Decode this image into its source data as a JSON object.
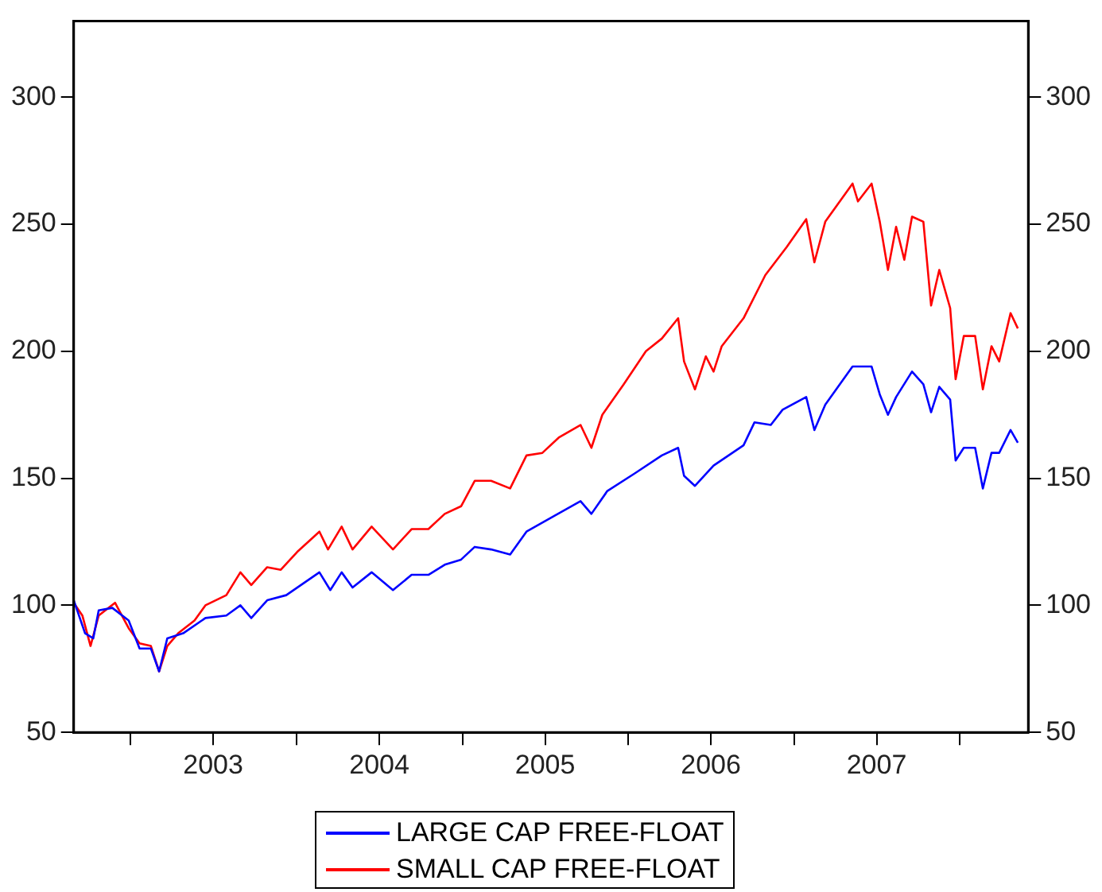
{
  "chart_data": {
    "type": "line",
    "xlim": [
      "2002-08-29",
      "2008-05-31"
    ],
    "xticks": [
      {
        "value": "2003-01-01",
        "label": null
      },
      {
        "value": "2003-07-02",
        "label": "2003"
      },
      {
        "value": "2004-01-01",
        "label": null
      },
      {
        "value": "2004-07-02",
        "label": "2004"
      },
      {
        "value": "2005-01-01",
        "label": null
      },
      {
        "value": "2005-07-02",
        "label": "2005"
      },
      {
        "value": "2006-01-01",
        "label": null
      },
      {
        "value": "2006-07-02",
        "label": "2006"
      },
      {
        "value": "2007-01-01",
        "label": null
      },
      {
        "value": "2007-07-02",
        "label": "2007"
      },
      {
        "value": "2008-01-01",
        "label": null
      }
    ],
    "ylim": [
      50,
      330
    ],
    "yticks": [
      50,
      100,
      150,
      200,
      250,
      300
    ],
    "y2lim": [
      50,
      330
    ],
    "y2ticks": [
      50,
      100,
      150,
      200,
      250,
      300
    ],
    "grid": false,
    "legend": "bottom",
    "marker": "none",
    "line_style": "solid",
    "series": [
      {
        "name": "LARGE CAP FREE-FLOAT",
        "color": "#0000ff",
        "x": [
          "2002-08-29",
          "2002-09-23",
          "2002-10-11",
          "2002-10-23",
          "2002-11-22",
          "2002-12-28",
          "2003-01-21",
          "2003-02-15",
          "2003-03-05",
          "2003-03-23",
          "2003-04-27",
          "2003-06-15",
          "2003-07-31",
          "2003-08-31",
          "2003-09-24",
          "2003-10-29",
          "2003-12-10",
          "2004-02-21",
          "2004-03-16",
          "2004-04-10",
          "2004-05-04",
          "2004-06-15",
          "2004-08-01",
          "2004-09-11",
          "2004-10-18",
          "2004-11-23",
          "2004-12-29",
          "2005-01-28",
          "2005-03-05",
          "2005-04-16",
          "2005-05-22",
          "2005-07-20",
          "2005-09-18",
          "2005-10-12",
          "2005-11-16",
          "2006-01-16",
          "2006-03-16",
          "2006-04-21",
          "2006-05-04",
          "2006-05-28",
          "2006-07-08",
          "2006-09-12",
          "2006-10-06",
          "2006-11-11",
          "2006-12-07",
          "2007-01-28",
          "2007-02-15",
          "2007-03-11",
          "2007-05-10",
          "2007-06-21",
          "2007-07-09",
          "2007-07-27",
          "2007-08-14",
          "2007-09-18",
          "2007-10-13",
          "2007-10-30",
          "2007-11-17",
          "2007-12-11",
          "2007-12-23",
          "2008-01-10",
          "2008-02-04",
          "2008-02-21",
          "2008-03-11",
          "2008-03-28",
          "2008-04-22",
          "2008-05-08"
        ],
        "values": [
          102,
          89,
          87,
          98,
          99,
          94,
          83,
          83,
          74,
          87,
          89,
          95,
          96,
          100,
          95,
          102,
          104,
          113,
          106,
          113,
          107,
          113,
          106,
          112,
          112,
          116,
          118,
          123,
          122,
          120,
          129,
          135,
          141,
          136,
          145,
          152,
          159,
          162,
          151,
          147,
          155,
          163,
          172,
          171,
          177,
          182,
          169,
          179,
          194,
          194,
          183,
          175,
          182,
          192,
          187,
          176,
          186,
          181,
          157,
          162,
          162,
          146,
          160,
          160,
          169,
          164
        ]
      },
      {
        "name": "SMALL CAP FREE-FLOAT",
        "color": "#ff0000",
        "x": [
          "2002-08-29",
          "2002-09-17",
          "2002-10-05",
          "2002-10-23",
          "2002-11-28",
          "2002-12-28",
          "2003-01-21",
          "2003-02-15",
          "2003-03-05",
          "2003-03-23",
          "2003-04-16",
          "2003-05-22",
          "2003-06-15",
          "2003-07-31",
          "2003-08-31",
          "2003-09-24",
          "2003-10-29",
          "2003-11-28",
          "2004-01-03",
          "2004-02-21",
          "2004-03-11",
          "2004-04-10",
          "2004-05-04",
          "2004-06-15",
          "2004-08-01",
          "2004-09-11",
          "2004-10-18",
          "2004-11-23",
          "2004-12-29",
          "2005-01-28",
          "2005-03-05",
          "2005-04-16",
          "2005-05-22",
          "2005-06-26",
          "2005-08-01",
          "2005-09-18",
          "2005-10-12",
          "2005-11-05",
          "2005-12-22",
          "2006-02-09",
          "2006-03-16",
          "2006-04-21",
          "2006-05-04",
          "2006-05-28",
          "2006-06-21",
          "2006-07-08",
          "2006-07-26",
          "2006-09-12",
          "2006-10-30",
          "2006-12-16",
          "2007-01-28",
          "2007-02-15",
          "2007-03-11",
          "2007-05-10",
          "2007-05-22",
          "2007-06-21",
          "2007-07-09",
          "2007-07-27",
          "2007-08-14",
          "2007-09-01",
          "2007-09-18",
          "2007-10-13",
          "2007-10-30",
          "2007-11-17",
          "2007-12-11",
          "2007-12-23",
          "2008-01-10",
          "2008-02-04",
          "2008-02-21",
          "2008-03-11",
          "2008-03-28",
          "2008-04-22",
          "2008-05-08"
        ],
        "values": [
          101,
          96,
          84,
          96,
          101,
          91,
          85,
          84,
          74,
          84,
          89,
          94,
          100,
          104,
          113,
          108,
          115,
          114,
          121,
          129,
          122,
          131,
          122,
          131,
          122,
          130,
          130,
          136,
          139,
          149,
          149,
          146,
          159,
          160,
          166,
          171,
          162,
          175,
          187,
          200,
          205,
          213,
          196,
          185,
          198,
          192,
          202,
          213,
          230,
          241,
          252,
          235,
          251,
          266,
          259,
          266,
          251,
          232,
          249,
          236,
          253,
          251,
          218,
          232,
          217,
          189,
          206,
          206,
          185,
          202,
          196,
          215,
          209
        ]
      }
    ]
  }
}
